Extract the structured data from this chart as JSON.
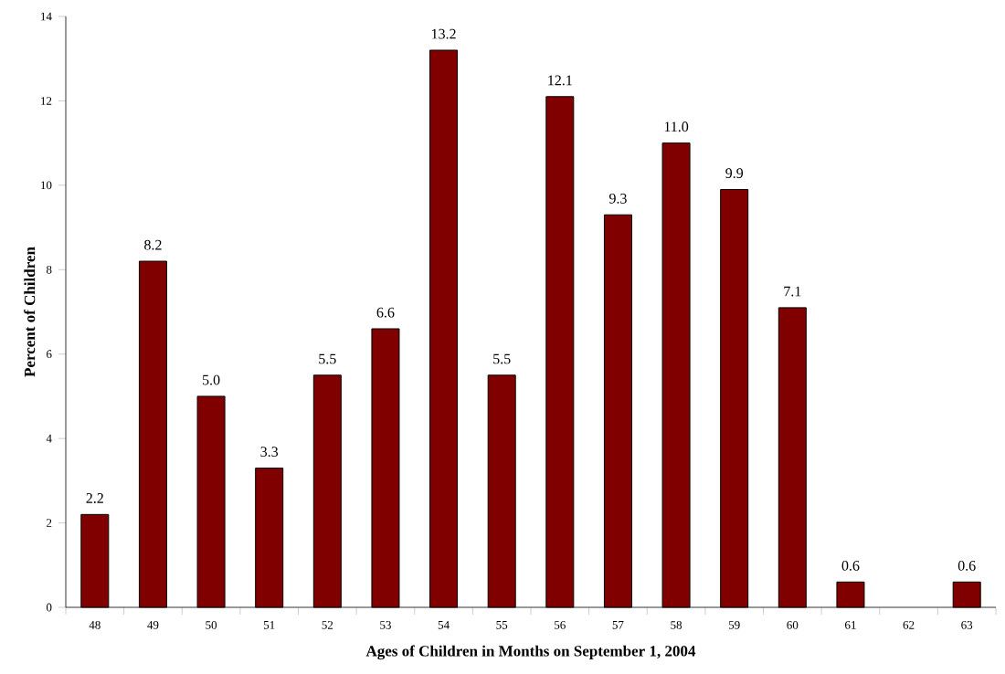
{
  "chart_data": {
    "type": "bar",
    "xlabel": "Ages of Children in Months on September 1, 2004",
    "ylabel": "Percent of Children",
    "categories": [
      "48",
      "49",
      "50",
      "51",
      "52",
      "53",
      "54",
      "55",
      "56",
      "57",
      "58",
      "59",
      "60",
      "61",
      "62",
      "63"
    ],
    "values": [
      2.2,
      8.2,
      5.0,
      3.3,
      5.5,
      6.6,
      13.2,
      5.5,
      12.1,
      9.3,
      11.0,
      9.9,
      7.1,
      0.6,
      null,
      0.6
    ],
    "value_labels": [
      "2.2",
      "8.2",
      "5.0",
      "3.3",
      "5.5",
      "6.6",
      "13.2",
      "5.5",
      "12.1",
      "9.3",
      "11.0",
      "9.9",
      "7.1",
      "0.6",
      null,
      "0.6"
    ],
    "color": "#800000",
    "ylim": [
      0,
      14
    ],
    "yticks": [
      0,
      2,
      4,
      6,
      8,
      10,
      12,
      14
    ]
  }
}
